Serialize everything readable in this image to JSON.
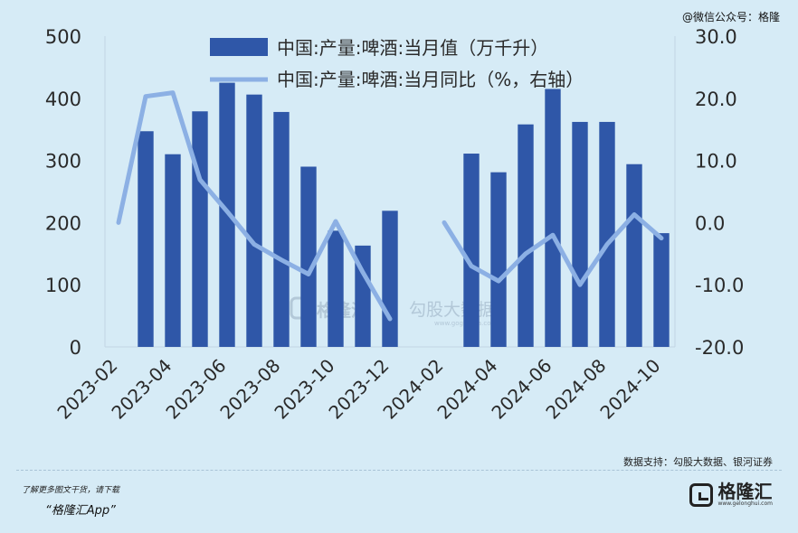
{
  "header": {
    "watermark": "@微信公众号：格隆"
  },
  "chart_data": {
    "type": "bar",
    "categories": [
      "2023-02",
      "2023-03",
      "2023-04",
      "2023-05",
      "2023-06",
      "2023-07",
      "2023-08",
      "2023-09",
      "2023-10",
      "2023-11",
      "2023-12",
      "2024-01",
      "2024-02",
      "2024-03",
      "2024-04",
      "2024-05",
      "2024-06",
      "2024-07",
      "2024-08",
      "2024-09",
      "2024-10"
    ],
    "x_tick_labels": [
      "2023-02",
      "2023-04",
      "2023-06",
      "2023-08",
      "2023-10",
      "2023-12",
      "2024-02",
      "2024-04",
      "2024-06",
      "2024-08",
      "2024-10"
    ],
    "series": [
      {
        "name": "中国:产量:啤酒:当月值（万千升）",
        "type": "bar",
        "axis": "left",
        "color": "#2f57a8",
        "values": [
          null,
          347,
          310,
          379,
          425,
          406,
          378,
          290,
          187,
          163,
          219,
          null,
          null,
          311,
          281,
          358,
          415,
          362,
          362,
          294,
          183
        ]
      },
      {
        "name": "中国:产量:啤酒:当月同比（%，右轴）",
        "type": "line",
        "axis": "right",
        "color": "#8cb0e4",
        "values": [
          0.0,
          20.3,
          20.9,
          6.9,
          1.8,
          -3.5,
          -6.0,
          -8.3,
          0.2,
          -8.0,
          -15.5,
          null,
          0.0,
          -7.0,
          -9.4,
          -5.0,
          -2.0,
          -10.0,
          -3.5,
          1.3,
          -2.5
        ]
      }
    ],
    "yleft": {
      "ylim": [
        0,
        500
      ],
      "ticks": [
        "0",
        "100",
        "200",
        "300",
        "400",
        "500"
      ]
    },
    "yright": {
      "ylim": [
        -20,
        30
      ],
      "ticks": [
        "-20.0",
        "-10.0",
        "0.0",
        "10.0",
        "20.0",
        "30.0"
      ]
    },
    "legend": "top-center",
    "grid": false
  },
  "chart_watermark": {
    "brand": "格隆汇",
    "product": "勾股大数据",
    "url": "www.gogudata.com"
  },
  "footer": {
    "source": "数据支持：勾股大数据、银河证券",
    "line1": "了解更多图文干货，请下载",
    "line2": "“格隆汇App”",
    "logo_name": "格隆汇",
    "logo_url": "www.gelonghui.com"
  }
}
